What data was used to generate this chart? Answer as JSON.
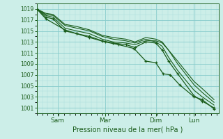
{
  "xlabel": "Pression niveau de la mer( hPa )",
  "background_color": "#cceee8",
  "grid_major_color": "#88cccc",
  "grid_minor_color": "#aadddd",
  "line_color": "#1a5c1a",
  "ylim": [
    1000,
    1020
  ],
  "yticks": [
    1001,
    1003,
    1005,
    1007,
    1009,
    1011,
    1013,
    1015,
    1017,
    1019
  ],
  "xlim": [
    0,
    1.0
  ],
  "day_labels": [
    "Sam",
    "Mar",
    "Dim",
    "Lun"
  ],
  "day_positions": [
    0.115,
    0.375,
    0.655,
    0.865
  ],
  "series": [
    {
      "x": [
        0.0,
        0.05,
        0.09,
        0.155,
        0.22,
        0.29,
        0.36,
        0.42,
        0.49,
        0.54,
        0.6,
        0.655,
        0.69,
        0.725,
        0.775,
        0.865,
        0.91,
        0.975
      ],
      "y": [
        1019,
        1017.5,
        1017.2,
        1015.0,
        1014.5,
        1014.0,
        1013.2,
        1012.8,
        1012.5,
        1012.0,
        1013.0,
        1012.8,
        1011.5,
        1009.5,
        1007.2,
        1003.2,
        1002.2,
        1001.0
      ],
      "markers": true
    },
    {
      "x": [
        0.0,
        0.05,
        0.09,
        0.155,
        0.22,
        0.29,
        0.36,
        0.42,
        0.49,
        0.54,
        0.6,
        0.655,
        0.69,
        0.725,
        0.775,
        0.865,
        0.91,
        0.975
      ],
      "y": [
        1019,
        1017.8,
        1017.5,
        1015.5,
        1015.0,
        1014.5,
        1013.5,
        1013.0,
        1012.8,
        1012.5,
        1013.2,
        1013.2,
        1012.8,
        1011.5,
        1009.0,
        1005.2,
        1003.8,
        1002.0
      ],
      "markers": false
    },
    {
      "x": [
        0.0,
        0.05,
        0.09,
        0.155,
        0.22,
        0.29,
        0.36,
        0.42,
        0.49,
        0.54,
        0.6,
        0.655,
        0.69,
        0.725,
        0.775,
        0.865,
        0.91,
        0.975
      ],
      "y": [
        1019,
        1018.0,
        1017.8,
        1016.0,
        1015.5,
        1015.0,
        1014.0,
        1013.5,
        1013.2,
        1012.8,
        1013.5,
        1013.0,
        1012.2,
        1010.2,
        1007.8,
        1004.2,
        1003.0,
        1001.5
      ],
      "markers": false
    },
    {
      "x": [
        0.0,
        0.05,
        0.09,
        0.155,
        0.22,
        0.29,
        0.36,
        0.42,
        0.49,
        0.54,
        0.6,
        0.655,
        0.69,
        0.725,
        0.775,
        0.865,
        0.91,
        0.975
      ],
      "y": [
        1019,
        1018.2,
        1018.0,
        1016.2,
        1015.8,
        1015.2,
        1014.2,
        1013.8,
        1013.5,
        1013.0,
        1013.8,
        1013.5,
        1013.0,
        1011.5,
        1009.5,
        1005.8,
        1004.5,
        1002.5
      ],
      "markers": false
    },
    {
      "x": [
        0.0,
        0.05,
        0.155,
        0.22,
        0.29,
        0.375,
        0.45,
        0.535,
        0.6,
        0.655,
        0.695,
        0.735,
        0.785,
        0.865,
        0.91,
        0.975
      ],
      "y": [
        1019,
        1017.2,
        1015.2,
        1014.5,
        1013.8,
        1013.0,
        1012.5,
        1011.8,
        1009.5,
        1009.2,
        1007.2,
        1007.0,
        1005.2,
        1003.0,
        1002.5,
        1000.8
      ],
      "markers": true
    }
  ]
}
